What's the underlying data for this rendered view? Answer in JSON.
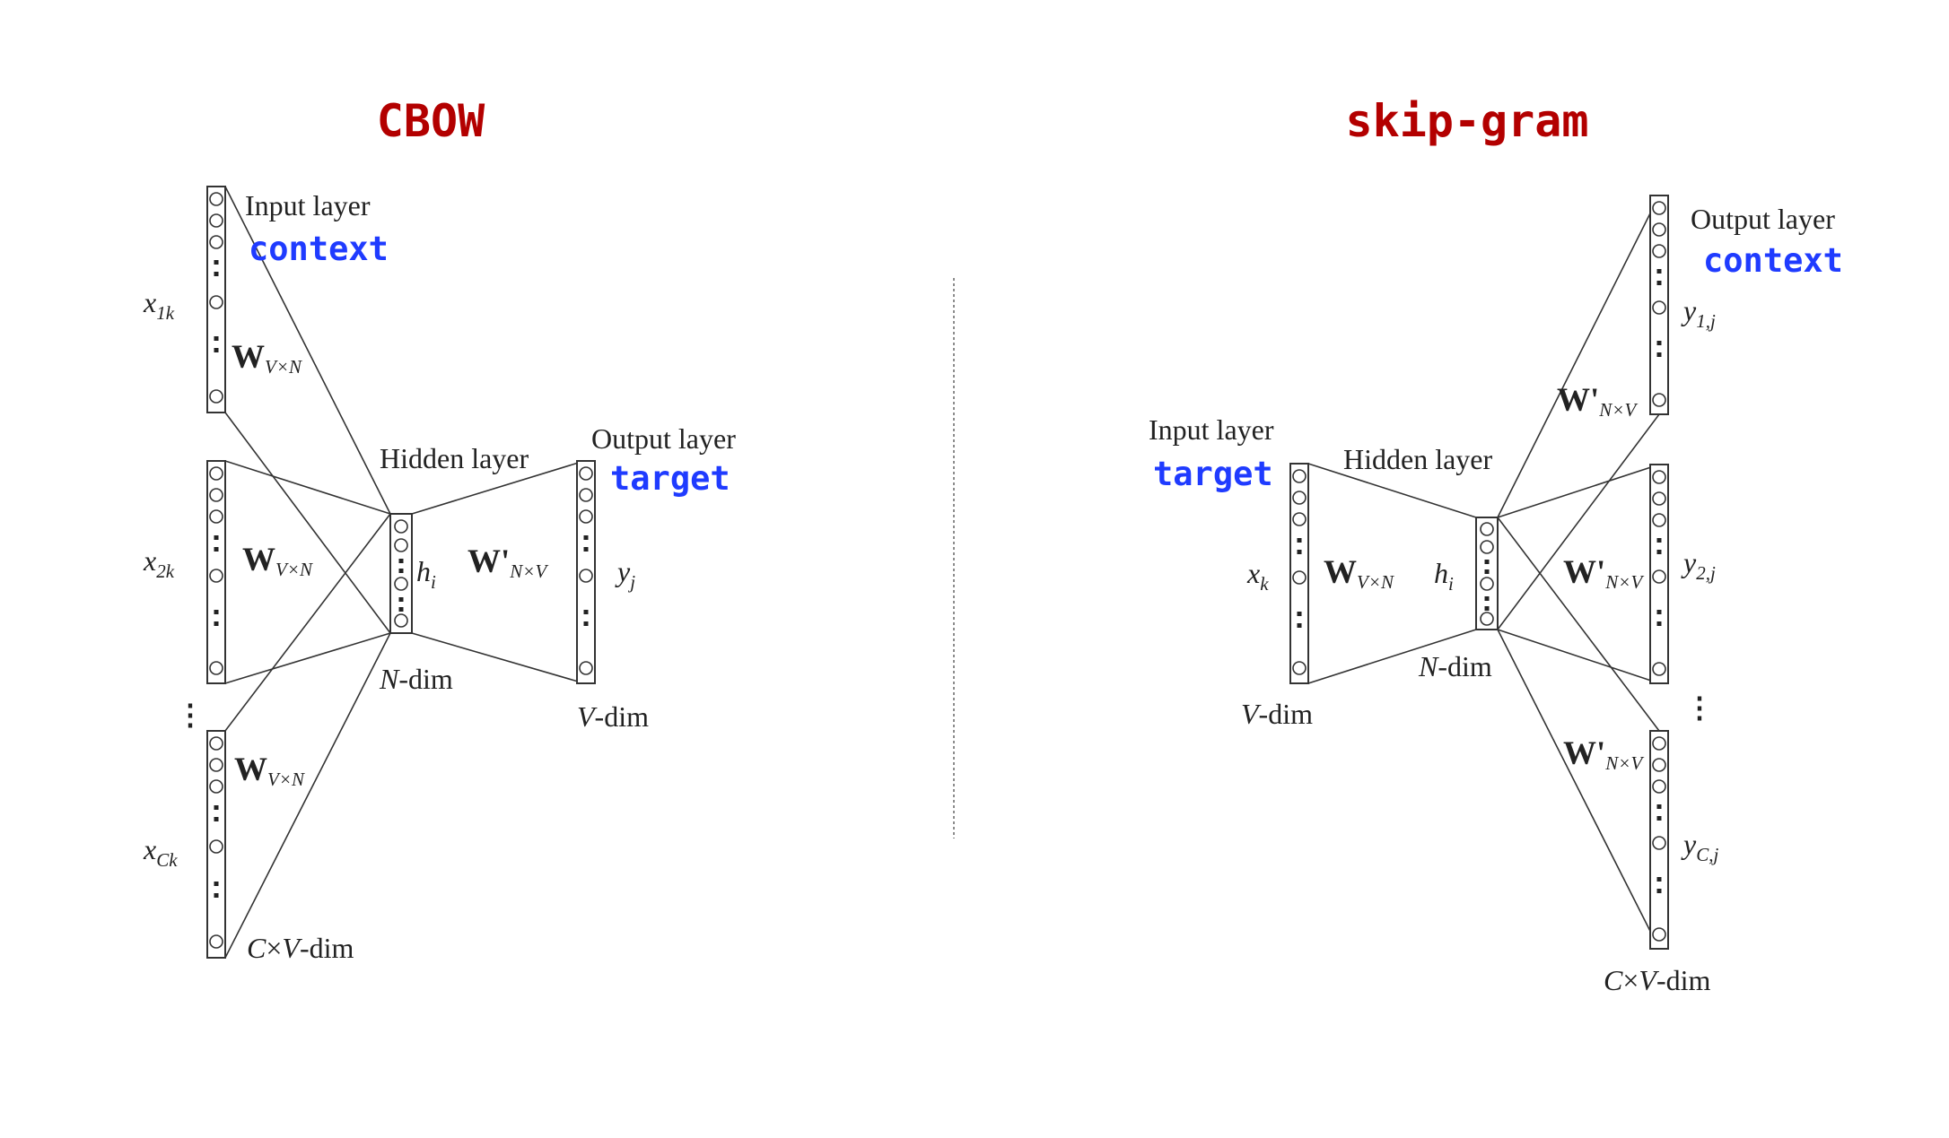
{
  "colors": {
    "title": "#b30000",
    "annotation": "#1f3bff",
    "ink": "#222222"
  },
  "cbow": {
    "title": "CBOW",
    "input_layer_label": "Input layer",
    "input_annotation": "context",
    "hidden_layer_label": "Hidden layer",
    "output_layer_label": "Output layer",
    "output_annotation": "target",
    "x1_label": "x",
    "x1_sub": "1k",
    "x2_label": "x",
    "x2_sub": "2k",
    "xc_label": "x",
    "xc_sub": "Ck",
    "w_label": "W",
    "w_sub": "V×N",
    "wprime_label": "W'",
    "wprime_sub": "N×V",
    "h_label": "h",
    "h_sub": "i",
    "y_label": "y",
    "y_sub": "j",
    "ndim_n": "N",
    "ndim_suffix": "-dim",
    "vdim_v": "V",
    "vdim_suffix": "-dim",
    "cvdim_c": "C",
    "cvdim_times": "×",
    "cvdim_v": "V",
    "cvdim_suffix": "-dim",
    "ellipsis": "⋮"
  },
  "skipgram": {
    "title": "skip-gram",
    "input_layer_label": "Input layer",
    "input_annotation": "target",
    "hidden_layer_label": "Hidden layer",
    "output_layer_label": "Output layer",
    "output_annotation": "context",
    "x_label": "x",
    "x_sub": "k",
    "w_label": "W",
    "w_sub": "V×N",
    "h_label": "h",
    "h_sub": "i",
    "wprime_label": "W'",
    "wprime_sub": "N×V",
    "y1_label": "y",
    "y1_sub": "1,j",
    "y2_label": "y",
    "y2_sub": "2,j",
    "yc_label": "y",
    "yc_sub": "C,j",
    "ndim_n": "N",
    "ndim_suffix": "-dim",
    "vdim_v": "V",
    "vdim_suffix": "-dim",
    "cvdim_c": "C",
    "cvdim_times": "×",
    "cvdim_v": "V",
    "cvdim_suffix": "-dim",
    "ellipsis": "⋮"
  }
}
